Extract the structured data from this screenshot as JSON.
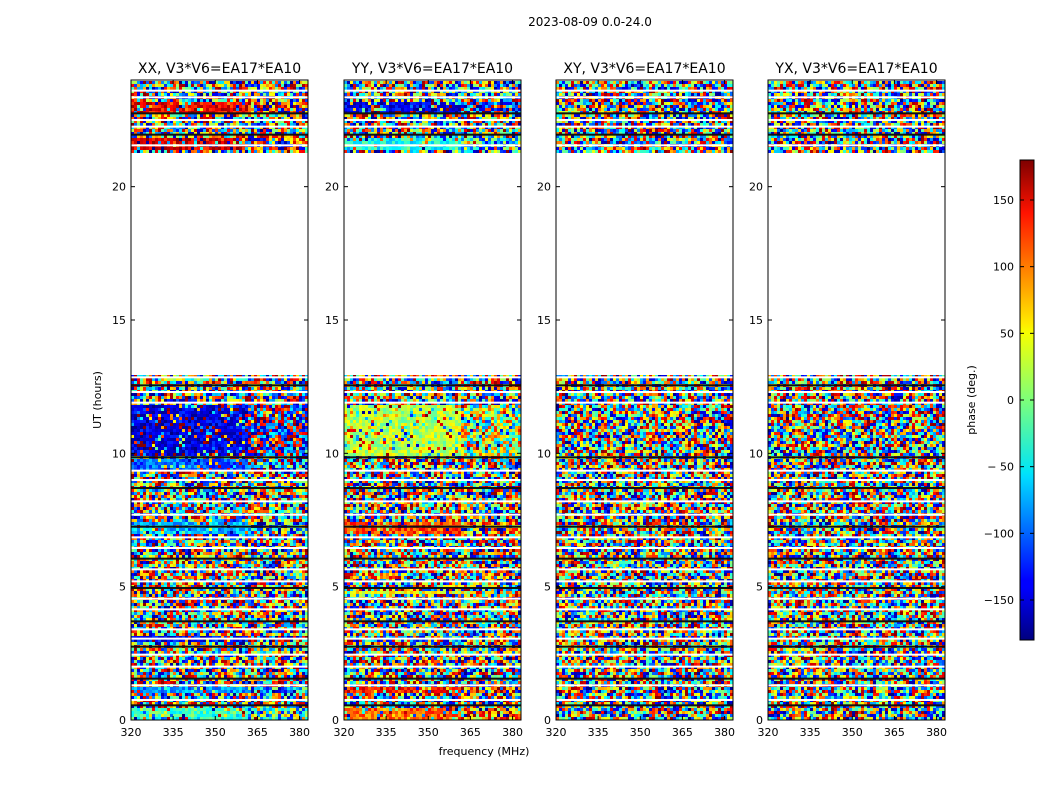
{
  "chart_data": {
    "type": "heatmap",
    "suptitle": "2023-08-09 0.0-24.0",
    "xlabel": "frequency (MHz)",
    "ylabel": "UT (hours)",
    "xlim": [
      320,
      383
    ],
    "ylim": [
      0,
      24
    ],
    "x_ticks": [
      320,
      335,
      350,
      365,
      380
    ],
    "y_ticks": [
      0,
      5,
      10,
      15,
      20
    ],
    "panels": [
      {
        "title": "XX, V3*V6=EA17*EA10",
        "coherent_bands": [
          {
            "ut": [
              0.05,
              0.4
            ],
            "phase": -20
          },
          {
            "ut": [
              1.0,
              1.2
            ],
            "phase": -80
          },
          {
            "ut": [
              2.9,
              3.2
            ],
            "phase": -140
          },
          {
            "ut": [
              7.0,
              7.4
            ],
            "phase": -70
          },
          {
            "ut": [
              9.4,
              9.8
            ],
            "phase": -100
          },
          {
            "ut": [
              9.9,
              11.8
            ],
            "phase": -150
          },
          {
            "ut": [
              21.4,
              21.9
            ],
            "phase": 150
          },
          {
            "ut": [
              22.8,
              23.2
            ],
            "phase": 140
          }
        ]
      },
      {
        "title": "YY, V3*V6=EA17*EA10",
        "coherent_bands": [
          {
            "ut": [
              0.05,
              0.4
            ],
            "phase": 100
          },
          {
            "ut": [
              1.0,
              1.2
            ],
            "phase": 130
          },
          {
            "ut": [
              4.7,
              4.9
            ],
            "phase": 40
          },
          {
            "ut": [
              7.0,
              7.4
            ],
            "phase": 110
          },
          {
            "ut": [
              9.9,
              11.8
            ],
            "phase": 20
          },
          {
            "ut": [
              21.4,
              21.9
            ],
            "phase": -40
          },
          {
            "ut": [
              22.8,
              23.2
            ],
            "phase": -150
          }
        ]
      },
      {
        "title": "XY, V3*V6=EA17*EA10",
        "coherent_bands": []
      },
      {
        "title": "YX, V3*V6=EA17*EA10",
        "coherent_bands": []
      }
    ],
    "flagged_ut_ranges": [
      [
        13.0,
        21.3
      ]
    ],
    "colorbar": {
      "label": "phase (deg.)",
      "range": [
        -180,
        180
      ],
      "ticks": [
        150,
        100,
        50,
        0,
        -50,
        -100,
        -150
      ],
      "tick_labels": [
        "150",
        "100",
        "50",
        "0",
        "− 50",
        "−100",
        "−150"
      ],
      "colormap": "jet"
    }
  }
}
